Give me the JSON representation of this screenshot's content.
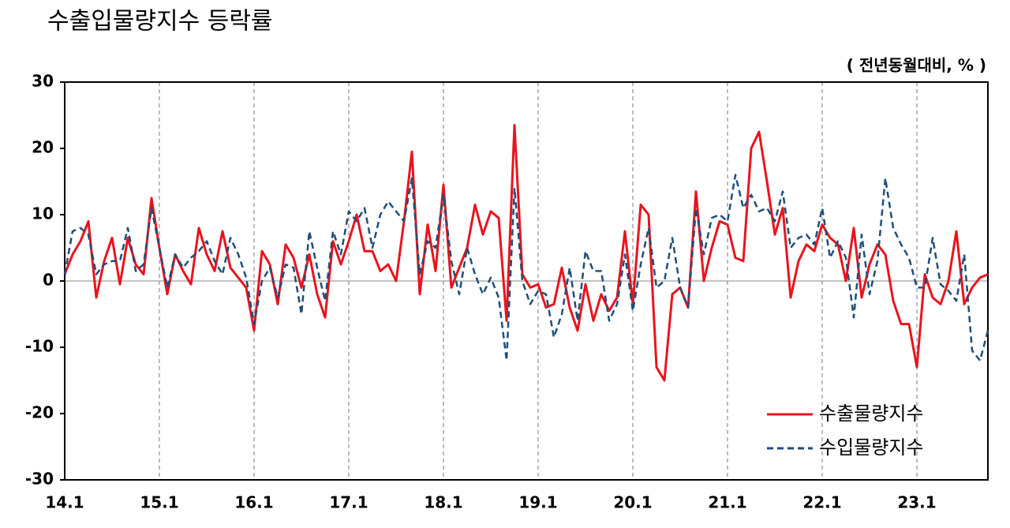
{
  "chart_data": {
    "type": "line",
    "title": "수출입물량지수 등락률",
    "unit_label": "( 전년동월대비, % )",
    "categories": [
      "14.1",
      null,
      null,
      null,
      null,
      null,
      null,
      null,
      null,
      null,
      null,
      null,
      "15.1",
      null,
      null,
      null,
      null,
      null,
      null,
      null,
      null,
      null,
      null,
      null,
      "16.1",
      null,
      null,
      null,
      null,
      null,
      null,
      null,
      null,
      null,
      null,
      null,
      "17.1",
      null,
      null,
      null,
      null,
      null,
      null,
      null,
      null,
      null,
      null,
      null,
      "18.1",
      null,
      null,
      null,
      null,
      null,
      null,
      null,
      null,
      null,
      null,
      null,
      "19.1",
      null,
      null,
      null,
      null,
      null,
      null,
      null,
      null,
      null,
      null,
      null,
      "20.1",
      null,
      null,
      null,
      null,
      null,
      null,
      null,
      null,
      null,
      null,
      null,
      "21.1",
      null,
      null,
      null,
      null,
      null,
      null,
      null,
      null,
      null,
      null,
      null,
      "22.1",
      null,
      null,
      null,
      null,
      null,
      null,
      null,
      null,
      null,
      null,
      null,
      "23.1",
      null,
      null,
      null,
      null,
      null,
      null,
      null,
      null,
      null
    ],
    "series": [
      {
        "name": "수출물량지수",
        "color": "#e8141e",
        "dash": false,
        "values": [
          1,
          4,
          6,
          9,
          -2.5,
          3,
          6.5,
          -0.5,
          6.5,
          2.5,
          1,
          12.5,
          5,
          -2,
          4,
          1.5,
          -0.5,
          8,
          4,
          1.5,
          7.5,
          2,
          0.5,
          -1,
          -7.5,
          4.5,
          2.5,
          -3.5,
          5.5,
          3.5,
          -1,
          4,
          -2,
          -5.5,
          6,
          2.5,
          6,
          10,
          4.5,
          4.5,
          1.5,
          2.5,
          0,
          9,
          19.5,
          -2,
          8.5,
          1.5,
          14.5,
          -1,
          2,
          5,
          11.5,
          7,
          10.5,
          9.5,
          -6,
          23.5,
          1,
          -1,
          -0.5,
          -4,
          -3.5,
          2,
          -4,
          -7.5,
          -0.5,
          -6,
          -2,
          -4.5,
          -2.5,
          7.5,
          -3.5,
          11.5,
          10,
          -13,
          -15,
          -2,
          -1,
          -4,
          13.5,
          0,
          5,
          9,
          8.5,
          3.5,
          3,
          20,
          22.5,
          15,
          7,
          11,
          -2.5,
          3,
          5.5,
          4.5,
          8.5,
          6.5,
          5.5,
          0,
          8,
          -2.5,
          2.5,
          5.5,
          4,
          -3,
          -6.5,
          -6.5,
          -13,
          1,
          -2.5,
          -3.5,
          0,
          7.5,
          -3.5,
          -1,
          0.5,
          1
        ]
      },
      {
        "name": "수입물량지수",
        "color": "#1f4e79",
        "dash": true,
        "values": [
          1,
          7.5,
          8,
          7,
          1,
          2.5,
          3,
          3,
          8,
          1.5,
          2.5,
          11,
          5,
          -1,
          4,
          2,
          3.5,
          4.5,
          6,
          3,
          1,
          6.5,
          4,
          0.5,
          -6.5,
          0,
          2,
          -2.5,
          2.5,
          2,
          -5,
          7.5,
          2,
          -3,
          7.5,
          4,
          10.5,
          9,
          11,
          5,
          10,
          12,
          10.5,
          9,
          15.5,
          1,
          6,
          5,
          13,
          3,
          -2,
          5,
          1,
          -2,
          0.5,
          -2.5,
          -12,
          14,
          0,
          -3.5,
          -1.5,
          -2,
          -8.5,
          -5,
          2,
          -6,
          4.5,
          1.5,
          1.5,
          -6,
          -3.5,
          4,
          -4.5,
          2.5,
          8,
          -1,
          0,
          6.5,
          -1,
          -4,
          11,
          4,
          9.5,
          10,
          9,
          16,
          11,
          13,
          10.5,
          11,
          9,
          13.5,
          5,
          6.5,
          7,
          5.5,
          11,
          3.5,
          6,
          3.5,
          -5.5,
          7,
          -2,
          3,
          15.5,
          8,
          5.5,
          3.5,
          -1,
          -1,
          6.5,
          -0.5,
          -1.5,
          -3,
          4,
          -10.5,
          -12,
          -7.5
        ]
      }
    ],
    "ylim": [
      -30,
      30
    ],
    "yticks": [
      -30,
      -20,
      -10,
      0,
      10,
      20,
      30
    ],
    "xgrid": true,
    "legend": "lower right"
  }
}
